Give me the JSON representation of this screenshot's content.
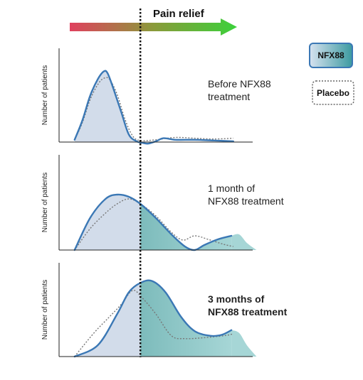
{
  "colors": {
    "arrow_start": "#e0405e",
    "arrow_mid": "#8a9a3a",
    "arrow_end": "#3bd13b",
    "nfx_line": "#3b78b5",
    "placebo_line": "#777777",
    "fill_left": "#d2dcea",
    "fill_right_start": "#5fa8a8",
    "fill_right_end": "#a6d6d6",
    "legend_nfx_start": "#d7e2f0",
    "legend_nfx_end": "#3b9aa0",
    "divider": "#111111"
  },
  "chart_data": {
    "type": "area",
    "title": "Pain relief",
    "legend": [
      {
        "name": "NFX88",
        "style": "solid-box"
      },
      {
        "name": "Placebo",
        "style": "dotted-box"
      }
    ],
    "x_range": [
      0,
      10
    ],
    "threshold_x": 4.2,
    "panels": [
      {
        "label": "Before NFX88 treatment",
        "label_bold": false,
        "ylabel": "Number of patients",
        "ylim": [
          0,
          100
        ],
        "nfx88": [
          [
            0.8,
            3
          ],
          [
            1.2,
            28
          ],
          [
            1.6,
            60
          ],
          [
            2.0,
            82
          ],
          [
            2.3,
            92
          ],
          [
            2.5,
            90
          ],
          [
            2.8,
            70
          ],
          [
            3.2,
            40
          ],
          [
            3.6,
            10
          ],
          [
            4.0,
            1
          ],
          [
            4.3,
            -1
          ],
          [
            4.6,
            -2
          ],
          [
            5.0,
            1
          ],
          [
            5.4,
            5
          ],
          [
            6.0,
            3
          ],
          [
            7.0,
            3
          ],
          [
            8.0,
            2
          ],
          [
            9.0,
            1
          ]
        ],
        "placebo": [
          [
            0.8,
            3
          ],
          [
            1.2,
            25
          ],
          [
            1.6,
            55
          ],
          [
            2.0,
            75
          ],
          [
            2.3,
            83
          ],
          [
            2.6,
            82
          ],
          [
            3.0,
            62
          ],
          [
            3.4,
            30
          ],
          [
            3.8,
            8
          ],
          [
            4.2,
            2
          ],
          [
            5.0,
            3
          ],
          [
            6.0,
            6
          ],
          [
            7.0,
            5
          ],
          [
            8.0,
            4
          ],
          [
            9.0,
            5
          ]
        ],
        "right_fill": false
      },
      {
        "label": "1 month of NFX88 treatment",
        "label_bold": false,
        "ylabel": "Number of patients",
        "ylim": [
          0,
          100
        ],
        "nfx88": [
          [
            0.8,
            0
          ],
          [
            1.6,
            45
          ],
          [
            2.4,
            72
          ],
          [
            3.0,
            78
          ],
          [
            3.6,
            75
          ],
          [
            4.2,
            65
          ],
          [
            5.0,
            45
          ],
          [
            5.8,
            22
          ],
          [
            6.5,
            5
          ],
          [
            7.0,
            0
          ],
          [
            7.5,
            7
          ],
          [
            8.2,
            15
          ],
          [
            8.9,
            20
          ]
        ],
        "placebo": [
          [
            0.8,
            0
          ],
          [
            1.6,
            30
          ],
          [
            2.4,
            52
          ],
          [
            3.0,
            65
          ],
          [
            3.6,
            72
          ],
          [
            4.2,
            65
          ],
          [
            5.0,
            48
          ],
          [
            5.8,
            25
          ],
          [
            6.4,
            14
          ],
          [
            7.0,
            20
          ],
          [
            7.7,
            15
          ],
          [
            8.5,
            8
          ],
          [
            9.0,
            5
          ]
        ],
        "tail_fill": [
          [
            8.9,
            20
          ],
          [
            9.3,
            22
          ],
          [
            9.7,
            10
          ],
          [
            10.2,
            0
          ]
        ],
        "right_fill": true
      },
      {
        "label": "3 months of NFX88 treatment",
        "label_bold": true,
        "ylabel": "Number of patients",
        "ylim": [
          0,
          100
        ],
        "nfx88": [
          [
            0.8,
            0
          ],
          [
            2.0,
            12
          ],
          [
            3.0,
            45
          ],
          [
            3.6,
            68
          ],
          [
            4.2,
            78
          ],
          [
            4.8,
            80
          ],
          [
            5.5,
            68
          ],
          [
            6.3,
            42
          ],
          [
            7.0,
            27
          ],
          [
            7.8,
            22
          ],
          [
            8.4,
            23
          ],
          [
            8.9,
            28
          ]
        ],
        "placebo": [
          [
            0.8,
            0
          ],
          [
            1.8,
            25
          ],
          [
            2.6,
            42
          ],
          [
            3.2,
            55
          ],
          [
            3.8,
            70
          ],
          [
            4.3,
            62
          ],
          [
            5.0,
            45
          ],
          [
            5.8,
            22
          ],
          [
            6.5,
            19
          ],
          [
            7.5,
            20
          ],
          [
            8.5,
            22
          ],
          [
            9.0,
            24
          ]
        ],
        "tail_fill": [
          [
            8.9,
            28
          ],
          [
            9.3,
            25
          ],
          [
            9.7,
            12
          ],
          [
            10.2,
            0
          ]
        ],
        "right_fill": true
      }
    ]
  }
}
